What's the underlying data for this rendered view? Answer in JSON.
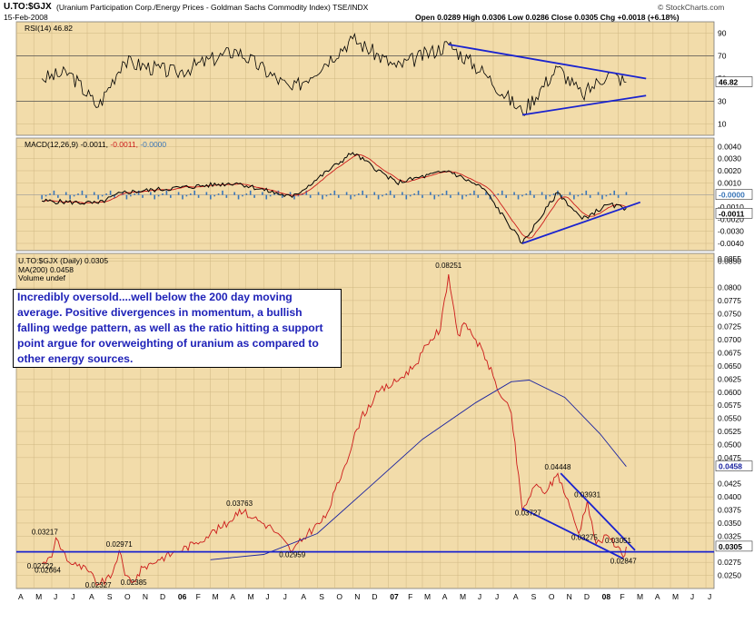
{
  "header": {
    "symbol": "U.TO:$GJX",
    "description": "(Uranium Participation Corp./Energy Prices - Goldman Sachs Commodity Index)  TSE/INDX",
    "date": "15-Feb-2008",
    "ohlc": "Open 0.0289  High 0.0306  Low 0.0286  Close 0.0305  Chg +0.0018 (+6.18%)",
    "credit": "© StockCharts.com"
  },
  "panels": {
    "rsi": {
      "label": "RSI(14) 46.82",
      "value_tag": "46.82",
      "ticks": [
        "90",
        "70",
        "50",
        "30",
        "10"
      ]
    },
    "macd": {
      "label_name": "MACD(12,26,9)",
      "label_macd": "-0.0011,",
      "label_signal": "-0.0011,",
      "label_hist": "-0.0000",
      "tag_hist": "-0.0000",
      "tag_macd": "-0.0011",
      "ticks": [
        "0.0040",
        "0.0030",
        "0.0020",
        "0.0010",
        "-0.0010",
        "-0.0020",
        "-0.0030",
        "-0.0040"
      ]
    },
    "price": {
      "legend": [
        "U.TO:$GJX (Daily) 0.0305",
        "MA(200) 0.0458",
        "Volume undef"
      ],
      "ticks": [
        "0.0855",
        "0.0850",
        "0.0800",
        "0.0775",
        "0.0750",
        "0.0725",
        "0.0700",
        "0.0675",
        "0.0650",
        "0.0625",
        "0.0600",
        "0.0575",
        "0.0550",
        "0.0525",
        "0.0500",
        "0.0475",
        "0.0425",
        "0.0400",
        "0.0375",
        "0.0350",
        "0.0325",
        "0.0275",
        "0.0250"
      ],
      "tag_ma": "0.0458",
      "tag_close": "0.0305",
      "annotation": "Incredibly oversold....well below the 200 day moving average. Positive divergences in momentum, a bullish falling wedge pattern, as well as the ratio hitting a support point argue for overweighting of uranium as compared to other energy sources."
    }
  },
  "x_axis": {
    "labels": [
      "A",
      "M",
      "J",
      "J",
      "A",
      "S",
      "O",
      "N",
      "D",
      "06",
      "F",
      "M",
      "A",
      "M",
      "J",
      "J",
      "A",
      "S",
      "O",
      "N",
      "D",
      "07",
      "F",
      "M",
      "A",
      "M",
      "J",
      "J",
      "A",
      "S",
      "O",
      "N",
      "D",
      "08",
      "F",
      "M",
      "A",
      "M",
      "J",
      "J"
    ]
  },
  "chart_data": {
    "type": "line",
    "title": "U.TO:$GJX (Uranium Participation Corp./Energy Prices - Goldman Sachs Commodity Index)",
    "date_range": [
      "2005-04",
      "2008-07"
    ],
    "price": {
      "name": "U.TO:$GJX (Daily)",
      "ylim": [
        0.0225,
        0.0865
      ],
      "points": [
        [
          "2005-05-15",
          0.0272
        ],
        [
          "2005-06-01",
          0.0285
        ],
        [
          "2005-06-08",
          0.03217
        ],
        [
          "2005-06-20",
          0.0298
        ],
        [
          "2005-07-01",
          0.0275
        ],
        [
          "2005-07-15",
          0.0268
        ],
        [
          "2005-08-01",
          0.026
        ],
        [
          "2005-08-20",
          0.02327
        ],
        [
          "2005-09-10",
          0.0245
        ],
        [
          "2005-09-25",
          0.02971
        ],
        [
          "2005-10-05",
          0.025
        ],
        [
          "2005-10-20",
          0.02385
        ],
        [
          "2005-11-05",
          0.0265
        ],
        [
          "2005-12-01",
          0.028
        ],
        [
          "2006-01-01",
          0.0295
        ],
        [
          "2006-02-01",
          0.031
        ],
        [
          "2006-03-01",
          0.033
        ],
        [
          "2006-04-01",
          0.035
        ],
        [
          "2006-04-20",
          0.03763
        ],
        [
          "2006-05-15",
          0.036
        ],
        [
          "2006-06-15",
          0.034
        ],
        [
          "2006-07-20",
          0.02959
        ],
        [
          "2006-08-15",
          0.033
        ],
        [
          "2006-09-15",
          0.036
        ],
        [
          "2006-10-15",
          0.045
        ],
        [
          "2006-11-15",
          0.055
        ],
        [
          "2006-12-15",
          0.06
        ],
        [
          "2007-01-15",
          0.062
        ],
        [
          "2007-02-15",
          0.065
        ],
        [
          "2007-03-15",
          0.07
        ],
        [
          "2007-04-01",
          0.072
        ],
        [
          "2007-04-15",
          0.08251
        ],
        [
          "2007-05-01",
          0.071
        ],
        [
          "2007-05-15",
          0.073
        ],
        [
          "2007-06-01",
          0.07
        ],
        [
          "2007-06-20",
          0.066
        ],
        [
          "2007-07-15",
          0.059
        ],
        [
          "2007-08-01",
          0.056
        ],
        [
          "2007-08-20",
          0.03727
        ],
        [
          "2007-09-10",
          0.042
        ],
        [
          "2007-10-01",
          0.041
        ],
        [
          "2007-10-20",
          0.04448
        ],
        [
          "2007-11-10",
          0.038
        ],
        [
          "2007-11-25",
          0.033
        ],
        [
          "2007-12-10",
          0.03931
        ],
        [
          "2007-12-25",
          0.031
        ],
        [
          "2008-01-15",
          0.0325
        ],
        [
          "2008-02-01",
          0.03051
        ],
        [
          "2008-02-10",
          0.02847
        ],
        [
          "2008-02-15",
          0.0305
        ]
      ],
      "annotated_values": [
        "0.03217",
        "0.02722",
        "0.02664",
        "0.02327",
        "0.02971",
        "0.02385",
        "0.03763",
        "0.02959",
        "0.08251",
        "0.03727",
        "0.04448",
        "0.03931",
        "0.03275",
        "0.03051",
        "0.02847"
      ]
    },
    "ma200": {
      "name": "MA(200)",
      "points": [
        [
          "2006-03-01",
          0.028
        ],
        [
          "2006-06-01",
          0.029
        ],
        [
          "2006-09-01",
          0.033
        ],
        [
          "2006-12-01",
          0.042
        ],
        [
          "2007-03-01",
          0.051
        ],
        [
          "2007-06-01",
          0.058
        ],
        [
          "2007-08-01",
          0.062
        ],
        [
          "2007-09-01",
          0.0623
        ],
        [
          "2007-11-01",
          0.059
        ],
        [
          "2008-01-01",
          0.052
        ],
        [
          "2008-02-15",
          0.0458
        ]
      ]
    },
    "rsi": {
      "name": "RSI(14)",
      "ylim": [
        0,
        100
      ],
      "levels": [
        70,
        30
      ],
      "points": [
        [
          "2005-05-15",
          50
        ],
        [
          "2005-07-01",
          55
        ],
        [
          "2005-08-20",
          25
        ],
        [
          "2005-10-01",
          65
        ],
        [
          "2006-01-01",
          55
        ],
        [
          "2006-04-15",
          75
        ],
        [
          "2006-07-20",
          40
        ],
        [
          "2006-11-01",
          85
        ],
        [
          "2007-01-15",
          60
        ],
        [
          "2007-04-15",
          80
        ],
        [
          "2007-06-15",
          55
        ],
        [
          "2007-08-20",
          20
        ],
        [
          "2007-10-20",
          60
        ],
        [
          "2007-12-01",
          35
        ],
        [
          "2008-01-15",
          55
        ],
        [
          "2008-02-15",
          46.82
        ]
      ]
    },
    "macd": {
      "name": "MACD(12,26,9)",
      "ylim": [
        -0.0046,
        0.0047
      ],
      "macd_points": [
        [
          "2005-05-15",
          -0.0005
        ],
        [
          "2005-08-20",
          -0.0007
        ],
        [
          "2005-10-01",
          0.0002
        ],
        [
          "2006-04-15",
          0.001
        ],
        [
          "2006-07-20",
          -0.0002
        ],
        [
          "2006-11-01",
          0.0035
        ],
        [
          "2007-01-15",
          0.001
        ],
        [
          "2007-04-15",
          0.002
        ],
        [
          "2007-06-15",
          0.0005
        ],
        [
          "2007-08-20",
          -0.004
        ],
        [
          "2007-10-20",
          0.0002
        ],
        [
          "2007-12-01",
          -0.002
        ],
        [
          "2008-01-15",
          -0.0008
        ],
        [
          "2008-02-15",
          -0.0011
        ]
      ],
      "signal": -0.0011,
      "histogram": -0.0
    },
    "trendlines": [
      {
        "panel": "rsi",
        "label": "falling wedge upper"
      },
      {
        "panel": "rsi",
        "label": "falling wedge lower"
      },
      {
        "panel": "macd",
        "label": "rising lows"
      },
      {
        "panel": "price",
        "label": "support 0.0295"
      },
      {
        "panel": "price",
        "label": "falling wedge"
      }
    ]
  },
  "colors": {
    "panel_bg": "#f2dcaa",
    "price_line": "#cc1a1a",
    "ma": "#1a23a0",
    "trend": "#1a23cf",
    "annotation_text": "#1f22b8"
  }
}
